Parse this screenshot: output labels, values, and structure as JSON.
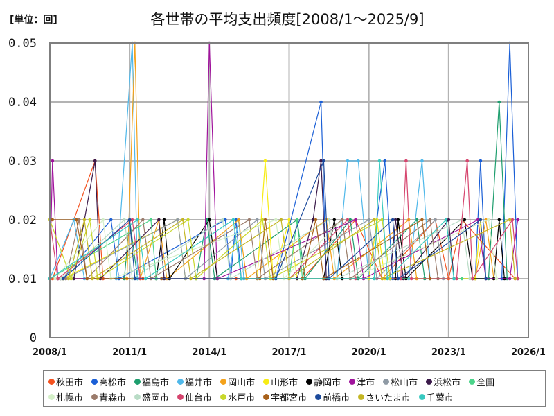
{
  "header": {
    "unit_label": "[単位：回]",
    "title": "各世帯の平均支出頻度[2008/1～2025/9]"
  },
  "chart_data": {
    "type": "line",
    "title": "各世帯の平均支出頻度[2008/1～2025/9]",
    "unit": "回",
    "xlabel": "",
    "ylabel": "",
    "ylim": [
      0,
      0.05
    ],
    "yticks": [
      "0",
      "0.01",
      "0.02",
      "0.03",
      "0.04",
      "0.05"
    ],
    "xticks": [
      "2008/1",
      "2011/1",
      "2014/1",
      "2017/1",
      "2020/1",
      "2023/1",
      "2026/1"
    ],
    "xrange": [
      2008.0,
      2026.0
    ],
    "grid": true,
    "legend_position": "bottom",
    "series": [
      {
        "name": "秋田市",
        "color": "#f4511e",
        "points": [
          [
            2008.1,
            0.01
          ],
          [
            2009.7,
            0.03
          ],
          [
            2010.0,
            0.01
          ],
          [
            2011.5,
            0.01
          ],
          [
            2015.0,
            0.01
          ],
          [
            2017.5,
            0.01
          ],
          [
            2019.5,
            0.02
          ],
          [
            2020.5,
            0.01
          ],
          [
            2022.5,
            0.02
          ],
          [
            2023.0,
            0.01
          ],
          [
            2023.5,
            0.02
          ],
          [
            2025.5,
            0.01
          ]
        ]
      },
      {
        "name": "高松市",
        "color": "#1a5fd6",
        "points": [
          [
            2008.5,
            0.01
          ],
          [
            2010.3,
            0.02
          ],
          [
            2010.6,
            0.01
          ],
          [
            2014.6,
            0.02
          ],
          [
            2014.8,
            0.01
          ],
          [
            2015.0,
            0.02
          ],
          [
            2015.2,
            0.01
          ],
          [
            2016.5,
            0.01
          ],
          [
            2018.2,
            0.04
          ],
          [
            2018.4,
            0.01
          ],
          [
            2020.0,
            0.01
          ],
          [
            2020.6,
            0.03
          ],
          [
            2020.9,
            0.01
          ],
          [
            2024.0,
            0.01
          ],
          [
            2024.2,
            0.03
          ],
          [
            2024.4,
            0.01
          ],
          [
            2025.0,
            0.01
          ],
          [
            2025.3,
            0.05
          ],
          [
            2025.6,
            0.01
          ]
        ]
      },
      {
        "name": "福島市",
        "color": "#1e9e6e",
        "points": [
          [
            2008.3,
            0.01
          ],
          [
            2010.8,
            0.01
          ],
          [
            2011.0,
            0.02
          ],
          [
            2011.3,
            0.01
          ],
          [
            2013.5,
            0.01
          ],
          [
            2013.9,
            0.02
          ],
          [
            2014.2,
            0.01
          ],
          [
            2017.3,
            0.02
          ],
          [
            2017.6,
            0.01
          ],
          [
            2019.3,
            0.02
          ],
          [
            2019.6,
            0.01
          ],
          [
            2021.8,
            0.02
          ],
          [
            2022.1,
            0.01
          ],
          [
            2024.5,
            0.01
          ],
          [
            2024.9,
            0.04
          ],
          [
            2025.2,
            0.01
          ]
        ]
      },
      {
        "name": "福井市",
        "color": "#4fb8ea",
        "points": [
          [
            2008.0,
            0.01
          ],
          [
            2008.9,
            0.02
          ],
          [
            2009.3,
            0.01
          ],
          [
            2010.5,
            0.01
          ],
          [
            2011.1,
            0.05
          ],
          [
            2011.3,
            0.01
          ],
          [
            2014.7,
            0.01
          ],
          [
            2015.1,
            0.02
          ],
          [
            2015.3,
            0.01
          ],
          [
            2018.8,
            0.01
          ],
          [
            2019.2,
            0.03
          ],
          [
            2019.6,
            0.03
          ],
          [
            2020.0,
            0.01
          ],
          [
            2021.5,
            0.01
          ],
          [
            2022.0,
            0.03
          ],
          [
            2022.3,
            0.01
          ]
        ]
      },
      {
        "name": "岡山市",
        "color": "#f4a21b",
        "points": [
          [
            2008.5,
            0.01
          ],
          [
            2010.9,
            0.01
          ],
          [
            2011.2,
            0.05
          ],
          [
            2011.4,
            0.01
          ],
          [
            2012.1,
            0.02
          ],
          [
            2012.4,
            0.01
          ],
          [
            2015.1,
            0.02
          ],
          [
            2015.4,
            0.01
          ],
          [
            2018.4,
            0.02
          ],
          [
            2018.7,
            0.01
          ],
          [
            2021.5,
            0.02
          ],
          [
            2021.8,
            0.01
          ],
          [
            2024.0,
            0.01
          ],
          [
            2024.4,
            0.02
          ],
          [
            2024.7,
            0.01
          ]
        ]
      },
      {
        "name": "山形市",
        "color": "#f7ec14",
        "points": [
          [
            2008.5,
            0.01
          ],
          [
            2012.8,
            0.02
          ],
          [
            2013.1,
            0.01
          ],
          [
            2015.8,
            0.01
          ],
          [
            2016.1,
            0.03
          ],
          [
            2016.4,
            0.01
          ],
          [
            2017.0,
            0.02
          ],
          [
            2017.3,
            0.01
          ],
          [
            2020.0,
            0.01
          ],
          [
            2020.3,
            0.02
          ],
          [
            2020.6,
            0.01
          ],
          [
            2024.0,
            0.01
          ],
          [
            2024.2,
            0.02
          ],
          [
            2024.4,
            0.01
          ]
        ]
      },
      {
        "name": "静岡市",
        "color": "#000000",
        "points": [
          [
            2008.4,
            0.01
          ],
          [
            2012.0,
            0.01
          ],
          [
            2012.3,
            0.02
          ],
          [
            2012.5,
            0.01
          ],
          [
            2014.0,
            0.02
          ],
          [
            2014.3,
            0.01
          ],
          [
            2018.3,
            0.01
          ],
          [
            2018.7,
            0.02
          ],
          [
            2019.0,
            0.01
          ],
          [
            2021.0,
            0.01
          ],
          [
            2021.1,
            0.02
          ],
          [
            2021.4,
            0.01
          ],
          [
            2023.6,
            0.02
          ],
          [
            2023.9,
            0.01
          ],
          [
            2024.7,
            0.01
          ],
          [
            2024.9,
            0.02
          ],
          [
            2025.1,
            0.01
          ]
        ]
      },
      {
        "name": "津市",
        "color": "#a0139c",
        "points": [
          [
            2008.0,
            0.01
          ],
          [
            2008.1,
            0.03
          ],
          [
            2008.3,
            0.01
          ],
          [
            2013.8,
            0.01
          ],
          [
            2014.0,
            0.05
          ],
          [
            2014.3,
            0.01
          ],
          [
            2019.5,
            0.02
          ],
          [
            2019.8,
            0.01
          ],
          [
            2024.1,
            0.02
          ],
          [
            2024.4,
            0.01
          ],
          [
            2025.3,
            0.01
          ],
          [
            2025.6,
            0.02
          ]
        ]
      },
      {
        "name": "松山市",
        "color": "#8f9aa5",
        "points": [
          [
            2008.6,
            0.01
          ],
          [
            2012.8,
            0.02
          ],
          [
            2013.1,
            0.01
          ],
          [
            2015.8,
            0.02
          ],
          [
            2016.1,
            0.01
          ],
          [
            2020.0,
            0.02
          ],
          [
            2020.3,
            0.01
          ],
          [
            2022.5,
            0.02
          ],
          [
            2022.8,
            0.01
          ]
        ]
      },
      {
        "name": "浜松市",
        "color": "#3b1a4a",
        "points": [
          [
            2008.9,
            0.01
          ],
          [
            2009.7,
            0.03
          ],
          [
            2009.9,
            0.01
          ],
          [
            2012.1,
            0.02
          ],
          [
            2012.3,
            0.01
          ],
          [
            2017.3,
            0.01
          ],
          [
            2017.9,
            0.02
          ],
          [
            2018.2,
            0.03
          ],
          [
            2018.4,
            0.01
          ],
          [
            2020.8,
            0.01
          ],
          [
            2021.0,
            0.02
          ],
          [
            2021.3,
            0.01
          ],
          [
            2023.0,
            0.02
          ],
          [
            2023.2,
            0.01
          ]
        ]
      },
      {
        "name": "全国",
        "color": "#4cd48a",
        "points": [
          [
            2008.0,
            0.01
          ],
          [
            2011.8,
            0.02
          ],
          [
            2012.0,
            0.01
          ],
          [
            2017.0,
            0.01
          ],
          [
            2017.3,
            0.02
          ],
          [
            2017.5,
            0.01
          ],
          [
            2023.5,
            0.01
          ]
        ]
      },
      {
        "name": "札幌市",
        "color": "#d4f0c8",
        "points": [
          [
            2008.2,
            0.01
          ],
          [
            2010.0,
            0.02
          ],
          [
            2010.3,
            0.01
          ],
          [
            2016.5,
            0.02
          ],
          [
            2016.8,
            0.01
          ],
          [
            2019.0,
            0.02
          ],
          [
            2019.3,
            0.01
          ],
          [
            2024.5,
            0.02
          ],
          [
            2024.8,
            0.01
          ]
        ]
      },
      {
        "name": "青森市",
        "color": "#9b7b6b",
        "points": [
          [
            2008.6,
            0.01
          ],
          [
            2009.1,
            0.02
          ],
          [
            2009.4,
            0.01
          ],
          [
            2011.5,
            0.02
          ],
          [
            2011.8,
            0.01
          ],
          [
            2015.5,
            0.02
          ],
          [
            2015.8,
            0.01
          ],
          [
            2019.0,
            0.02
          ],
          [
            2019.3,
            0.01
          ],
          [
            2022.3,
            0.02
          ],
          [
            2022.6,
            0.01
          ]
        ]
      },
      {
        "name": "盛岡市",
        "color": "#b9dcc6",
        "points": [
          [
            2008.4,
            0.01
          ],
          [
            2010.8,
            0.02
          ],
          [
            2011.1,
            0.01
          ],
          [
            2014.5,
            0.02
          ],
          [
            2014.8,
            0.01
          ],
          [
            2018.5,
            0.02
          ],
          [
            2018.8,
            0.01
          ],
          [
            2023.5,
            0.02
          ],
          [
            2023.8,
            0.01
          ]
        ]
      },
      {
        "name": "仙台市",
        "color": "#d6456e",
        "points": [
          [
            2008.0,
            0.02
          ],
          [
            2008.3,
            0.01
          ],
          [
            2011.1,
            0.02
          ],
          [
            2011.4,
            0.01
          ],
          [
            2017.0,
            0.01
          ],
          [
            2019.2,
            0.02
          ],
          [
            2019.5,
            0.01
          ],
          [
            2021.2,
            0.01
          ],
          [
            2021.4,
            0.03
          ],
          [
            2021.6,
            0.01
          ],
          [
            2023.3,
            0.01
          ],
          [
            2023.7,
            0.03
          ],
          [
            2023.9,
            0.01
          ],
          [
            2025.4,
            0.02
          ],
          [
            2025.6,
            0.01
          ]
        ]
      },
      {
        "name": "水戸市",
        "color": "#c8d82c",
        "points": [
          [
            2008.0,
            0.02
          ],
          [
            2008.8,
            0.01
          ],
          [
            2009.5,
            0.02
          ],
          [
            2009.8,
            0.01
          ],
          [
            2013.2,
            0.02
          ],
          [
            2013.5,
            0.01
          ],
          [
            2016.0,
            0.02
          ],
          [
            2016.3,
            0.01
          ],
          [
            2020.5,
            0.02
          ],
          [
            2020.8,
            0.01
          ]
        ]
      },
      {
        "name": "宇都宮市",
        "color": "#a8611a",
        "points": [
          [
            2008.1,
            0.02
          ],
          [
            2009.0,
            0.02
          ],
          [
            2009.4,
            0.01
          ],
          [
            2012.2,
            0.01
          ],
          [
            2015.9,
            0.01
          ],
          [
            2016.1,
            0.02
          ],
          [
            2016.4,
            0.01
          ],
          [
            2017.5,
            0.01
          ],
          [
            2018.0,
            0.02
          ],
          [
            2018.3,
            0.01
          ],
          [
            2022.0,
            0.02
          ],
          [
            2022.3,
            0.01
          ]
        ]
      },
      {
        "name": "前橋市",
        "color": "#1c4a9c",
        "points": [
          [
            2008.5,
            0.01
          ],
          [
            2011.0,
            0.02
          ],
          [
            2011.2,
            0.01
          ],
          [
            2016.5,
            0.01
          ],
          [
            2018.3,
            0.03
          ],
          [
            2018.5,
            0.01
          ],
          [
            2020.9,
            0.02
          ],
          [
            2021.1,
            0.01
          ],
          [
            2024.2,
            0.02
          ],
          [
            2024.4,
            0.01
          ]
        ]
      },
      {
        "name": "さいたま市",
        "color": "#c4b624",
        "points": [
          [
            2008.7,
            0.01
          ],
          [
            2009.3,
            0.02
          ],
          [
            2009.6,
            0.01
          ],
          [
            2013.0,
            0.02
          ],
          [
            2013.3,
            0.01
          ],
          [
            2016.7,
            0.02
          ],
          [
            2017.0,
            0.01
          ],
          [
            2020.2,
            0.02
          ],
          [
            2020.5,
            0.01
          ],
          [
            2025.3,
            0.02
          ],
          [
            2025.5,
            0.01
          ]
        ]
      },
      {
        "name": "千葉市",
        "color": "#38c9c0",
        "points": [
          [
            2008.0,
            0.01
          ],
          [
            2011.3,
            0.02
          ],
          [
            2011.6,
            0.01
          ],
          [
            2014.9,
            0.02
          ],
          [
            2015.2,
            0.01
          ],
          [
            2020.2,
            0.01
          ],
          [
            2020.4,
            0.03
          ],
          [
            2020.7,
            0.01
          ],
          [
            2022.9,
            0.02
          ],
          [
            2023.2,
            0.01
          ]
        ]
      }
    ]
  },
  "legend": {
    "rows": [
      [
        "秋田市",
        "高松市",
        "福島市",
        "福井市",
        "岡山市",
        "山形市",
        "静岡市",
        "津市",
        "松山市",
        "浜松市",
        "全国"
      ],
      [
        "札幌市",
        "青森市",
        "盛岡市",
        "仙台市",
        "水戸市",
        "宇都宮市",
        "前橋市",
        "さいたま市",
        "千葉市"
      ]
    ]
  }
}
